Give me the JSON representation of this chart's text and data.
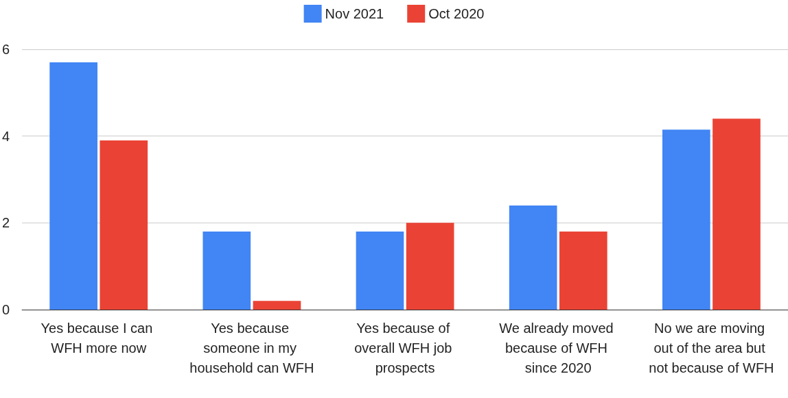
{
  "chart_data": {
    "type": "bar",
    "categories": [
      "Yes because I can WFH more now",
      "Yes because someone in my household can WFH",
      "Yes because of overall WFH job prospects",
      "We already moved because of WFH since 2020",
      "No we are moving out of the area but not because of WFH"
    ],
    "series": [
      {
        "name": "Nov 2021",
        "color": "#4285f4",
        "values": [
          5.7,
          1.8,
          1.8,
          2.4,
          4.15
        ]
      },
      {
        "name": "Oct 2020",
        "color": "#ea4335",
        "values": [
          3.9,
          0.2,
          2.0,
          1.8,
          4.4
        ]
      }
    ],
    "ylim": [
      0,
      6
    ],
    "yticks": [
      0,
      2,
      4,
      6
    ],
    "grid": "y",
    "legend": "top"
  }
}
